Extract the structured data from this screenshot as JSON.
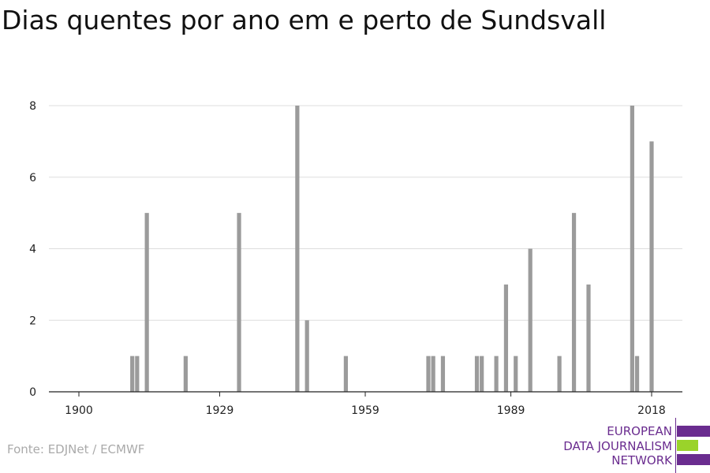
{
  "chart_data": {
    "type": "bar",
    "title": "Dias quentes por ano em e perto de Sundsvall",
    "xlabel": "",
    "ylabel": "",
    "xlim": [
      1898,
      2024
    ],
    "ylim": [
      0,
      8
    ],
    "x_ticks": [
      1900,
      1929,
      1959,
      1989,
      2018
    ],
    "y_ticks": [
      0,
      2,
      4,
      6,
      8
    ],
    "grid": true,
    "bar_color": "#9b9b9b",
    "points": [
      {
        "x": 1911,
        "y": 1
      },
      {
        "x": 1912,
        "y": 1
      },
      {
        "x": 1914,
        "y": 5
      },
      {
        "x": 1922,
        "y": 1
      },
      {
        "x": 1933,
        "y": 5
      },
      {
        "x": 1945,
        "y": 8
      },
      {
        "x": 1947,
        "y": 2
      },
      {
        "x": 1955,
        "y": 1
      },
      {
        "x": 1972,
        "y": 1
      },
      {
        "x": 1973,
        "y": 1
      },
      {
        "x": 1975,
        "y": 1
      },
      {
        "x": 1982,
        "y": 1
      },
      {
        "x": 1983,
        "y": 1
      },
      {
        "x": 1986,
        "y": 1
      },
      {
        "x": 1988,
        "y": 3
      },
      {
        "x": 1990,
        "y": 1
      },
      {
        "x": 1993,
        "y": 4
      },
      {
        "x": 1999,
        "y": 1
      },
      {
        "x": 2002,
        "y": 5
      },
      {
        "x": 2005,
        "y": 3
      },
      {
        "x": 2014,
        "y": 8
      },
      {
        "x": 2015,
        "y": 1
      },
      {
        "x": 2018,
        "y": 7
      }
    ]
  },
  "source": "Fonte: EDJNet / ECMWF",
  "logo": {
    "lines": [
      "EUROPEAN",
      "DATA JOURNALISM",
      "NETWORK"
    ],
    "colors": {
      "purple": "#6a2c8f",
      "green": "#9ad32a"
    }
  }
}
